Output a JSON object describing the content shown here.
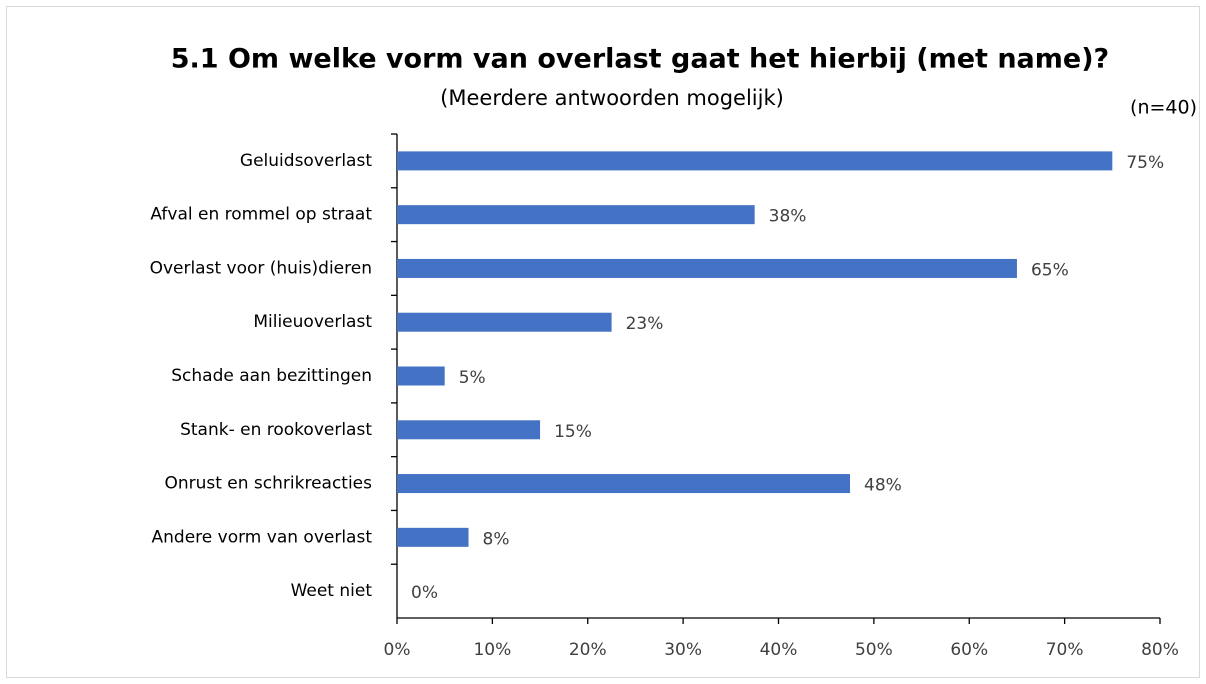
{
  "chart_data": {
    "type": "bar",
    "orientation": "horizontal",
    "title": "5.1 Om welke vorm van overlast gaat het hierbij (met name)?",
    "subtitle": "(Meerdere antwoorden mogelijk)",
    "annotation": "(n=40)",
    "categories": [
      "Geluidsoverlast",
      "Afval en rommel op straat",
      "Overlast voor (huis)dieren",
      "Milieuoverlast",
      "Schade aan bezittingen",
      "Stank- en rookoverlast",
      "Onrust en schrikreacties",
      "Andere vorm van overlast",
      "Weet niet"
    ],
    "values": [
      75,
      37.5,
      65,
      22.5,
      5,
      15,
      47.5,
      7.5,
      0
    ],
    "value_labels": [
      "75%",
      "38%",
      "65%",
      "23%",
      "5%",
      "15%",
      "48%",
      "8%",
      "0%"
    ],
    "color": "#4472c4",
    "xlim": [
      0,
      80
    ],
    "xticks": [
      {
        "value": 0,
        "label": "0%"
      },
      {
        "value": 10,
        "label": "10%"
      },
      {
        "value": 20,
        "label": "20%"
      },
      {
        "value": 30,
        "label": "30%"
      },
      {
        "value": 40,
        "label": "40%"
      },
      {
        "value": 50,
        "label": "50%"
      },
      {
        "value": 60,
        "label": "60%"
      },
      {
        "value": 70,
        "label": "70%"
      },
      {
        "value": 80,
        "label": "80%"
      }
    ],
    "grid": false
  }
}
